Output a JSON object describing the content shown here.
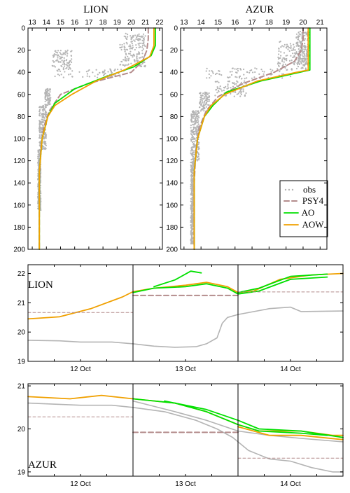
{
  "colors": {
    "obs": "#b4b4b4",
    "psy4": "#b48c8c",
    "ao": "#00e000",
    "aow": "#f0a000"
  },
  "chart_data": [
    {
      "type": "scatter-profile",
      "title": "LION",
      "x_ticks": [
        "13",
        "14",
        "15",
        "16",
        "17",
        "18",
        "19",
        "20",
        "21",
        "22"
      ],
      "xlim": [
        12.7,
        22.2
      ],
      "ylim": [
        0,
        200
      ],
      "y_inverted": true,
      "y_ticks": [
        "0",
        "20",
        "40",
        "60",
        "80",
        "100",
        "120",
        "140",
        "160",
        "180",
        "200"
      ],
      "series": [
        {
          "key": "psy4",
          "style": "dashed",
          "points": [
            [
              21.2,
              0
            ],
            [
              21.2,
              10
            ],
            [
              21.1,
              20
            ],
            [
              20.8,
              30
            ],
            [
              20.0,
              40
            ],
            [
              17.0,
              50
            ],
            [
              15.0,
              60
            ],
            [
              14.2,
              75
            ],
            [
              13.8,
              90
            ],
            [
              13.6,
              110
            ],
            [
              13.5,
              140
            ],
            [
              13.5,
              200
            ]
          ]
        },
        {
          "key": "ao",
          "style": "solid",
          "points": [
            [
              21.7,
              0
            ],
            [
              21.7,
              10
            ],
            [
              21.7,
              16
            ],
            [
              21.4,
              25
            ],
            [
              20.2,
              35
            ],
            [
              18.0,
              45
            ],
            [
              16.0,
              55
            ],
            [
              14.6,
              68
            ],
            [
              14.1,
              80
            ],
            [
              13.7,
              100
            ],
            [
              13.5,
              130
            ],
            [
              13.5,
              200
            ]
          ]
        },
        {
          "key": "aow",
          "style": "solid",
          "points": [
            [
              21.6,
              0
            ],
            [
              21.6,
              10
            ],
            [
              21.6,
              16
            ],
            [
              21.3,
              26
            ],
            [
              19.5,
              38
            ],
            [
              17.5,
              48
            ],
            [
              15.8,
              60
            ],
            [
              14.6,
              70
            ],
            [
              14.1,
              80
            ],
            [
              13.7,
              100
            ],
            [
              13.5,
              130
            ],
            [
              13.5,
              200
            ]
          ]
        }
      ],
      "obs_clusters": [
        {
          "x": [
            19.5,
            21.0
          ],
          "y": [
            5,
            15
          ]
        },
        {
          "x": [
            19.2,
            21.0
          ],
          "y": [
            15,
            35
          ]
        },
        {
          "x": [
            14.6,
            19.5
          ],
          "y": [
            37,
            45
          ]
        },
        {
          "x": [
            14.4,
            15.8
          ],
          "y": [
            20,
            37
          ]
        },
        {
          "x": [
            13.9,
            14.3
          ],
          "y": [
            55,
            70
          ]
        },
        {
          "x": [
            13.5,
            14.0
          ],
          "y": [
            70,
            110
          ]
        },
        {
          "x": [
            13.4,
            13.6
          ],
          "y": [
            110,
            165
          ]
        }
      ]
    },
    {
      "type": "scatter-profile",
      "title": "AZUR",
      "x_ticks": [
        "13",
        "14",
        "15",
        "16",
        "17",
        "18",
        "19",
        "20",
        "21"
      ],
      "xlim": [
        12.8,
        21.4
      ],
      "ylim": [
        0,
        200
      ],
      "y_inverted": true,
      "y_ticks": [
        "0",
        "20",
        "40",
        "60",
        "80",
        "100",
        "120",
        "140",
        "160",
        "180",
        "200"
      ],
      "series": [
        {
          "key": "psy4",
          "style": "dashed",
          "points": [
            [
              20.0,
              0
            ],
            [
              20.0,
              10
            ],
            [
              19.9,
              20
            ],
            [
              19.5,
              30
            ],
            [
              18.3,
              40
            ],
            [
              16.5,
              50
            ],
            [
              15.0,
              62
            ],
            [
              14.3,
              75
            ],
            [
              13.9,
              90
            ],
            [
              13.7,
              110
            ],
            [
              13.6,
              140
            ],
            [
              13.6,
              200
            ]
          ]
        },
        {
          "key": "ao",
          "style": "solid",
          "points": [
            [
              20.4,
              0
            ],
            [
              20.4,
              10
            ],
            [
              20.4,
              38
            ],
            [
              19.8,
              40
            ],
            [
              17.5,
              48
            ],
            [
              15.5,
              58
            ],
            [
              14.7,
              70
            ],
            [
              14.2,
              80
            ],
            [
              13.8,
              100
            ],
            [
              13.6,
              130
            ],
            [
              13.6,
              200
            ]
          ]
        },
        {
          "key": "aow",
          "style": "solid",
          "points": [
            [
              20.3,
              0
            ],
            [
              20.3,
              10
            ],
            [
              20.3,
              38
            ],
            [
              19.6,
              40
            ],
            [
              17.3,
              48
            ],
            [
              15.4,
              60
            ],
            [
              14.6,
              70
            ],
            [
              14.2,
              80
            ],
            [
              13.8,
              100
            ],
            [
              13.6,
              130
            ],
            [
              13.6,
              200
            ]
          ]
        }
      ],
      "obs_clusters": [
        {
          "x": [
            19.6,
            20.4
          ],
          "y": [
            3,
            35
          ]
        },
        {
          "x": [
            18.5,
            20.3
          ],
          "y": [
            12,
            38
          ]
        },
        {
          "x": [
            14.3,
            19.3
          ],
          "y": [
            36,
            46
          ]
        },
        {
          "x": [
            14.8,
            16.7
          ],
          "y": [
            48,
            62
          ]
        },
        {
          "x": [
            13.9,
            14.5
          ],
          "y": [
            58,
            75
          ]
        },
        {
          "x": [
            13.4,
            13.9
          ],
          "y": [
            75,
            120
          ]
        },
        {
          "x": [
            13.4,
            13.6
          ],
          "y": [
            120,
            195
          ]
        }
      ]
    },
    {
      "type": "line",
      "title": "LION",
      "x_ticks": [
        "12 Oct",
        "13 Oct",
        "14 Oct"
      ],
      "xlim": [
        0,
        3
      ],
      "ylim": [
        19,
        22.3
      ],
      "y_ticks": [
        "19",
        "20",
        "21",
        "22"
      ],
      "day_boundaries": [
        1,
        2
      ],
      "series": [
        {
          "key": "obs",
          "style": "solid",
          "points": [
            [
              0,
              19.72
            ],
            [
              0.3,
              19.7
            ],
            [
              0.5,
              19.66
            ],
            [
              0.8,
              19.66
            ],
            [
              1.0,
              19.6
            ],
            [
              1.2,
              19.52
            ],
            [
              1.4,
              19.48
            ],
            [
              1.6,
              19.5
            ],
            [
              1.7,
              19.6
            ],
            [
              1.8,
              19.8
            ],
            [
              1.85,
              20.3
            ],
            [
              1.9,
              20.5
            ],
            [
              2.0,
              20.6
            ],
            [
              2.3,
              20.8
            ],
            [
              2.5,
              20.85
            ],
            [
              2.6,
              20.7
            ],
            [
              3,
              20.72
            ]
          ]
        },
        {
          "key": "aow",
          "style": "solid",
          "points": [
            [
              0,
              20.45
            ],
            [
              0.3,
              20.52
            ],
            [
              0.6,
              20.8
            ],
            [
              0.9,
              21.2
            ],
            [
              1.0,
              21.38
            ],
            [
              1.2,
              21.5
            ],
            [
              1.5,
              21.6
            ],
            [
              1.7,
              21.7
            ],
            [
              1.9,
              21.55
            ],
            [
              2.0,
              21.35
            ],
            [
              2.15,
              21.4
            ],
            [
              2.4,
              21.8
            ],
            [
              2.7,
              21.95
            ],
            [
              3,
              22.0
            ]
          ]
        },
        {
          "key": "ao",
          "style": "solid",
          "points": [
            [
              1.0,
              21.35
            ],
            [
              1.2,
              21.5
            ],
            [
              1.5,
              21.55
            ],
            [
              1.7,
              21.65
            ],
            [
              1.9,
              21.5
            ],
            [
              2.0,
              21.3
            ],
            [
              2.2,
              21.4
            ],
            [
              2.5,
              21.8
            ],
            [
              2.85,
              21.88
            ]
          ]
        },
        {
          "key": "ao",
          "style": "solid",
          "points": [
            [
              1.2,
              21.55
            ],
            [
              1.4,
              21.78
            ],
            [
              1.55,
              22.08
            ],
            [
              1.65,
              22.02
            ]
          ]
        },
        {
          "key": "ao",
          "style": "solid",
          "points": [
            [
              2.0,
              21.35
            ],
            [
              2.2,
              21.5
            ],
            [
              2.5,
              21.9
            ],
            [
              2.85,
              21.98
            ]
          ]
        },
        {
          "key": "psy4",
          "style": "dashed-thin",
          "points": [
            [
              0,
              20.67
            ],
            [
              1.0,
              20.67
            ]
          ]
        },
        {
          "key": "psy4",
          "style": "dashed",
          "points": [
            [
              1.0,
              21.25
            ],
            [
              2.0,
              21.25
            ]
          ]
        },
        {
          "key": "psy4",
          "style": "dashed-thin",
          "points": [
            [
              2.0,
              21.37
            ],
            [
              3,
              21.37
            ]
          ]
        }
      ]
    },
    {
      "type": "line",
      "title": "AZUR",
      "x_ticks": [
        "12 Oct",
        "13 Oct",
        "14 Oct"
      ],
      "xlim": [
        0,
        3
      ],
      "ylim": [
        18.9,
        21.05
      ],
      "y_ticks": [
        "19",
        "20",
        "21"
      ],
      "day_boundaries": [
        1,
        2
      ],
      "series": [
        {
          "key": "obs",
          "style": "solid",
          "points": [
            [
              0,
              20.6
            ],
            [
              0.5,
              20.55
            ],
            [
              0.8,
              20.55
            ],
            [
              1.0,
              20.5
            ],
            [
              1.3,
              20.4
            ],
            [
              1.6,
              20.2
            ],
            [
              1.8,
              20.0
            ],
            [
              1.95,
              19.8
            ],
            [
              2.1,
              19.5
            ],
            [
              2.3,
              19.3
            ],
            [
              2.5,
              19.25
            ],
            [
              2.7,
              19.1
            ],
            [
              2.9,
              19.0
            ],
            [
              3,
              19.0
            ]
          ]
        },
        {
          "key": "obs",
          "style": "solid",
          "points": [
            [
              1.0,
              20.65
            ],
            [
              1.4,
              20.4
            ],
            [
              1.7,
              20.2
            ],
            [
              2.0,
              19.95
            ],
            [
              2.3,
              19.85
            ],
            [
              2.6,
              19.78
            ],
            [
              3,
              19.7
            ]
          ]
        },
        {
          "key": "aow",
          "style": "solid",
          "points": [
            [
              0,
              20.75
            ],
            [
              0.4,
              20.7
            ],
            [
              0.7,
              20.78
            ],
            [
              1.0,
              20.7
            ],
            [
              1.4,
              20.6
            ],
            [
              1.7,
              20.4
            ],
            [
              2.0,
              20.1
            ],
            [
              2.2,
              19.95
            ],
            [
              2.6,
              19.95
            ],
            [
              2.9,
              19.85
            ],
            [
              3,
              19.85
            ]
          ]
        },
        {
          "key": "ao",
          "style": "solid",
          "points": [
            [
              1.0,
              20.7
            ],
            [
              1.4,
              20.6
            ],
            [
              1.7,
              20.4
            ],
            [
              2.0,
              20.1
            ],
            [
              2.2,
              19.95
            ],
            [
              2.6,
              19.9
            ],
            [
              2.85,
              19.85
            ]
          ]
        },
        {
          "key": "ao",
          "style": "solid",
          "points": [
            [
              1.3,
              20.65
            ],
            [
              1.7,
              20.45
            ],
            [
              2.0,
              20.2
            ],
            [
              2.2,
              20.0
            ],
            [
              2.6,
              19.95
            ],
            [
              3,
              19.8
            ]
          ]
        },
        {
          "key": "aow",
          "style": "solid",
          "points": [
            [
              2.0,
              20.05
            ],
            [
              2.3,
              19.85
            ],
            [
              2.6,
              19.85
            ],
            [
              3,
              19.75
            ]
          ]
        },
        {
          "key": "psy4",
          "style": "dashed-thin",
          "points": [
            [
              0,
              20.28
            ],
            [
              1.0,
              20.28
            ]
          ]
        },
        {
          "key": "psy4",
          "style": "dashed",
          "points": [
            [
              1.0,
              19.92
            ],
            [
              2.0,
              19.92
            ]
          ]
        },
        {
          "key": "psy4",
          "style": "dashed-thin",
          "points": [
            [
              2.0,
              19.32
            ],
            [
              3,
              19.32
            ]
          ]
        }
      ]
    }
  ],
  "legend": [
    {
      "key": "obs",
      "label": "obs",
      "style": "dots"
    },
    {
      "key": "psy4",
      "label": "PSY4",
      "style": "dashed"
    },
    {
      "key": "ao",
      "label": "AO",
      "style": "solid"
    },
    {
      "key": "aow",
      "label": "AOW",
      "style": "solid"
    }
  ]
}
